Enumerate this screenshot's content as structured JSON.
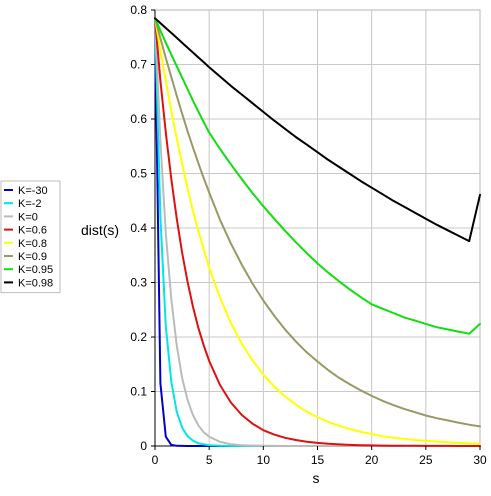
{
  "chart_data": {
    "type": "line",
    "title": "",
    "xlabel": "s",
    "ylabel": "dist(s)",
    "xlim": [
      0,
      30
    ],
    "ylim": [
      0,
      0.8
    ],
    "x_ticks": [
      0,
      5,
      10,
      15,
      20,
      25,
      30
    ],
    "y_ticks": [
      0,
      0.1,
      0.2,
      0.3,
      0.4,
      0.5,
      0.6,
      0.7,
      0.8
    ],
    "x_tick_labels": [
      "0",
      "5",
      "10",
      "15",
      "20",
      "25",
      "30"
    ],
    "y_tick_labels": [
      "0",
      "0.1",
      "0.2",
      "0.3",
      "0.4",
      "0.5",
      "0.6",
      "0.7",
      "0.8"
    ],
    "grid": true,
    "legend_position": "left",
    "x": [
      0,
      0.5,
      1,
      1.5,
      2,
      2.5,
      3,
      3.5,
      4,
      4.5,
      5,
      6,
      7,
      8,
      9,
      10,
      11,
      12,
      13,
      14,
      15,
      16,
      17,
      18,
      19,
      20,
      21,
      22,
      23,
      24,
      25,
      26,
      27,
      28,
      29,
      30
    ],
    "series": [
      {
        "name": "K=-30",
        "color": "#0000cc",
        "values": [
          0.785,
          0.115,
          0.017,
          0.002,
          0.0004,
          0.0001,
          0,
          0,
          0,
          0,
          0,
          0,
          0,
          0,
          0,
          0,
          0,
          0,
          0,
          0,
          0,
          0,
          0,
          0,
          0,
          0,
          0,
          0,
          0,
          0,
          0,
          0,
          0,
          0,
          0,
          0
        ]
      },
      {
        "name": "K=-2",
        "color": "#00e6e6",
        "values": [
          0.785,
          0.42,
          0.22,
          0.118,
          0.063,
          0.034,
          0.018,
          0.01,
          0.005,
          0.003,
          0.0015,
          0.0004,
          0.0001,
          0,
          0,
          0,
          0,
          0,
          0,
          0,
          0,
          0,
          0,
          0,
          0,
          0,
          0,
          0,
          0,
          0,
          0,
          0,
          0,
          0,
          0,
          0
        ]
      },
      {
        "name": "K=0",
        "color": "#bbbbbb",
        "values": [
          0.785,
          0.56,
          0.39,
          0.27,
          0.185,
          0.125,
          0.085,
          0.057,
          0.038,
          0.025,
          0.017,
          0.0075,
          0.0033,
          0.0015,
          0.0007,
          0.0003,
          0.0001,
          0,
          0,
          0,
          0,
          0,
          0,
          0,
          0,
          0,
          0,
          0,
          0,
          0,
          0,
          0,
          0,
          0,
          0,
          0
        ]
      },
      {
        "name": "K=0.6",
        "color": "#dd1111",
        "values": [
          0.785,
          0.67,
          0.575,
          0.49,
          0.418,
          0.355,
          0.302,
          0.256,
          0.217,
          0.184,
          0.156,
          0.112,
          0.08,
          0.057,
          0.041,
          0.029,
          0.021,
          0.015,
          0.011,
          0.0078,
          0.0056,
          0.004,
          0.0029,
          0.0021,
          0.0015,
          0.0011,
          0.0008,
          0.0006,
          0.0004,
          0.0003,
          0.0002,
          0.0001,
          0.0001,
          0,
          0,
          0
        ]
      },
      {
        "name": "K=0.8",
        "color": "#ffff00",
        "values": [
          0.785,
          0.725,
          0.67,
          0.615,
          0.565,
          0.518,
          0.473,
          0.432,
          0.395,
          0.36,
          0.327,
          0.272,
          0.226,
          0.188,
          0.157,
          0.131,
          0.109,
          0.091,
          0.076,
          0.063,
          0.053,
          0.044,
          0.037,
          0.031,
          0.026,
          0.022,
          0.018,
          0.015,
          0.013,
          0.011,
          0.0095,
          0.008,
          0.0067,
          0.0056,
          0.0047,
          0.004
        ]
      },
      {
        "name": "K=0.9",
        "color": "#999966",
        "values": [
          0.785,
          0.748,
          0.712,
          0.677,
          0.643,
          0.61,
          0.578,
          0.548,
          0.519,
          0.491,
          0.465,
          0.415,
          0.372,
          0.333,
          0.298,
          0.267,
          0.239,
          0.214,
          0.192,
          0.172,
          0.155,
          0.139,
          0.125,
          0.113,
          0.102,
          0.092,
          0.083,
          0.075,
          0.068,
          0.062,
          0.056,
          0.051,
          0.047,
          0.043,
          0.039,
          0.036
        ]
      },
      {
        "name": "K=0.95",
        "color": "#11dd11",
        "values": [
          0.785,
          0.762,
          0.74,
          0.718,
          0.697,
          0.676,
          0.655,
          0.634,
          0.614,
          0.594,
          0.575,
          0.545,
          0.517,
          0.49,
          0.464,
          0.44,
          0.417,
          0.395,
          0.374,
          0.354,
          0.335,
          0.318,
          0.302,
          0.287,
          0.273,
          0.26,
          0.252,
          0.244,
          0.236,
          0.23,
          0.224,
          0.218,
          0.214,
          0.21,
          0.206,
          0.224
        ]
      },
      {
        "name": "K=0.98",
        "color": "#000000",
        "values": [
          0.785,
          0.776,
          0.767,
          0.758,
          0.749,
          0.74,
          0.731,
          0.722,
          0.713,
          0.704,
          0.695,
          0.678,
          0.661,
          0.645,
          0.629,
          0.613,
          0.597,
          0.582,
          0.567,
          0.553,
          0.539,
          0.525,
          0.512,
          0.499,
          0.486,
          0.474,
          0.462,
          0.45,
          0.439,
          0.428,
          0.417,
          0.406,
          0.396,
          0.386,
          0.376,
          0.461
        ]
      }
    ]
  }
}
